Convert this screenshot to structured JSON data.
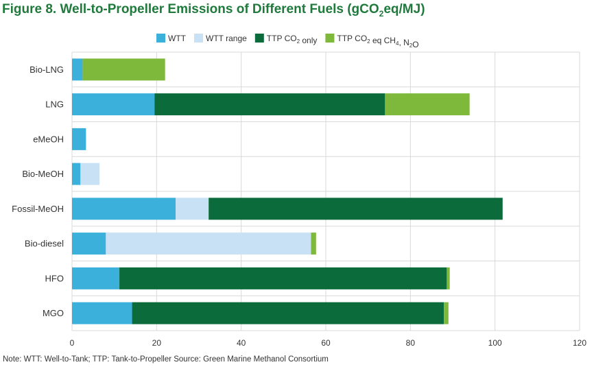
{
  "title": {
    "main": "Figure 8. Well-to-Propeller Emissions of Different Fuels (gCO",
    "sub": "2",
    "end": "eq/MJ)"
  },
  "note": "Note: WTT: Well-to-Tank; TTP: Tank-to-Propeller Source: Green Marine Methanol Consortium",
  "chart_data": {
    "type": "bar",
    "orientation": "horizontal",
    "stacked": true,
    "title": "Figure 8. Well-to-Propeller Emissions of Different Fuels (gCO2eq/MJ)",
    "categories": [
      "Bio-LNG",
      "LNG",
      "eMeOH",
      "Bio-MeOH",
      "Fossil-MeOH",
      "Bio-diesel",
      "HFO",
      "MGO"
    ],
    "series": [
      {
        "name": "WTT",
        "color": "#3bb0db",
        "values": [
          2.5,
          19.5,
          3.3,
          2.0,
          24.5,
          8.0,
          11.2,
          14.2
        ]
      },
      {
        "name": "WTT range",
        "color": "#c8e1f4",
        "values": [
          0,
          0,
          0,
          4.5,
          7.8,
          48.5,
          0,
          0
        ]
      },
      {
        "name": "TTP CO2 only",
        "color": "#0b6b3a",
        "values": [
          0,
          54.5,
          0,
          0,
          69.5,
          0,
          77.4,
          73.7
        ]
      },
      {
        "name": "TTP CO2 eq CH4, N2O",
        "color": "#7fb93c",
        "values": [
          19.5,
          20.0,
          0,
          0,
          0,
          1.2,
          0.7,
          1.1
        ]
      }
    ],
    "legend": [
      {
        "text": "WTT",
        "color": "#3bb0db"
      },
      {
        "text": "WTT range",
        "color": "#c8e1f4"
      },
      {
        "parts": [
          [
            "TTP CO",
            ""
          ],
          [
            "2",
            "sub"
          ],
          [
            " only",
            ""
          ]
        ],
        "color": "#0b6b3a"
      },
      {
        "parts": [
          [
            "TTP CO",
            ""
          ],
          [
            "2",
            "sub"
          ],
          [
            " eq CH",
            ""
          ],
          [
            "4",
            "sub"
          ],
          [
            ", N",
            ""
          ],
          [
            "2",
            "sub"
          ],
          [
            "O",
            ""
          ]
        ],
        "color": "#7fb93c"
      }
    ],
    "legend_position": "top",
    "xlim": [
      0,
      120
    ],
    "xticks": [
      0,
      20,
      40,
      60,
      80,
      100,
      120
    ],
    "grid": true
  }
}
